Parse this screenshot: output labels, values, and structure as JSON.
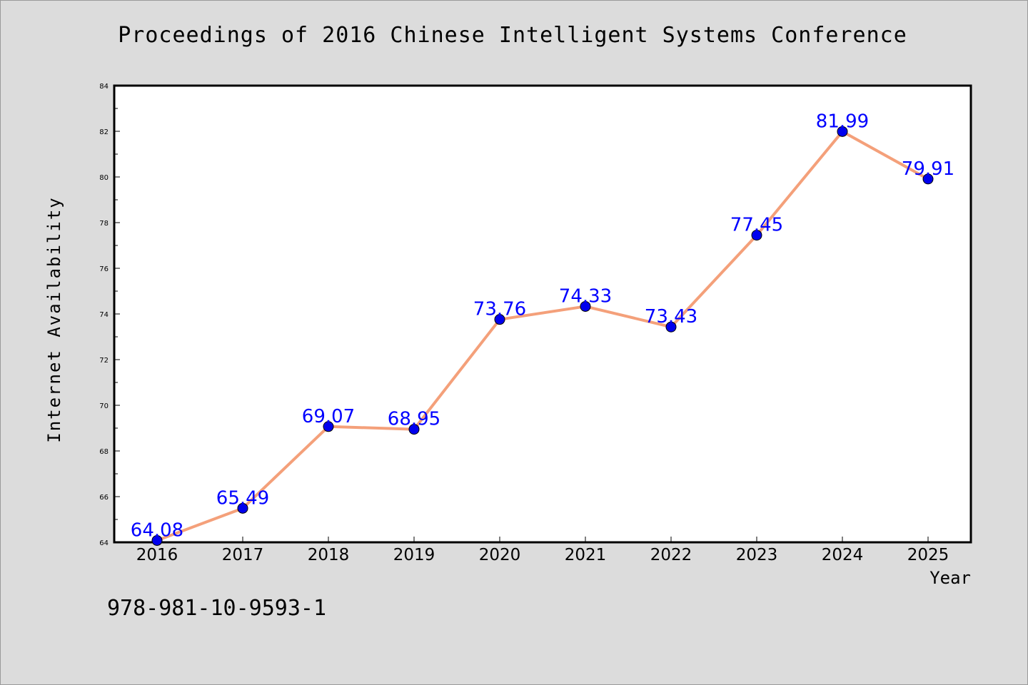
{
  "chart_data": {
    "type": "line",
    "title": "Proceedings of 2016 Chinese Intelligent Systems Conference",
    "xlabel": "Year",
    "ylabel": "Internet Availability",
    "categories": [
      "2016",
      "2017",
      "2018",
      "2019",
      "2020",
      "2021",
      "2022",
      "2023",
      "2024",
      "2025"
    ],
    "values": [
      64.08,
      65.49,
      69.07,
      68.95,
      73.76,
      74.33,
      73.43,
      77.45,
      81.99,
      79.91
    ],
    "data_labels": [
      "64.08",
      "65.49",
      "69.07",
      "68.95",
      "73.76",
      "74.33",
      "73.43",
      "77.45",
      "81.99",
      "79.91"
    ],
    "ylim": [
      64,
      84
    ],
    "yticks": [
      "64",
      "66",
      "68",
      "70",
      "72",
      "74",
      "76",
      "78",
      "80",
      "82",
      "84"
    ],
    "grid": false,
    "colors": {
      "line": "#f4a07a",
      "marker": "#0000ee",
      "label": "#0000ff"
    }
  },
  "footer": {
    "isbn": "978-981-10-9593-1"
  }
}
